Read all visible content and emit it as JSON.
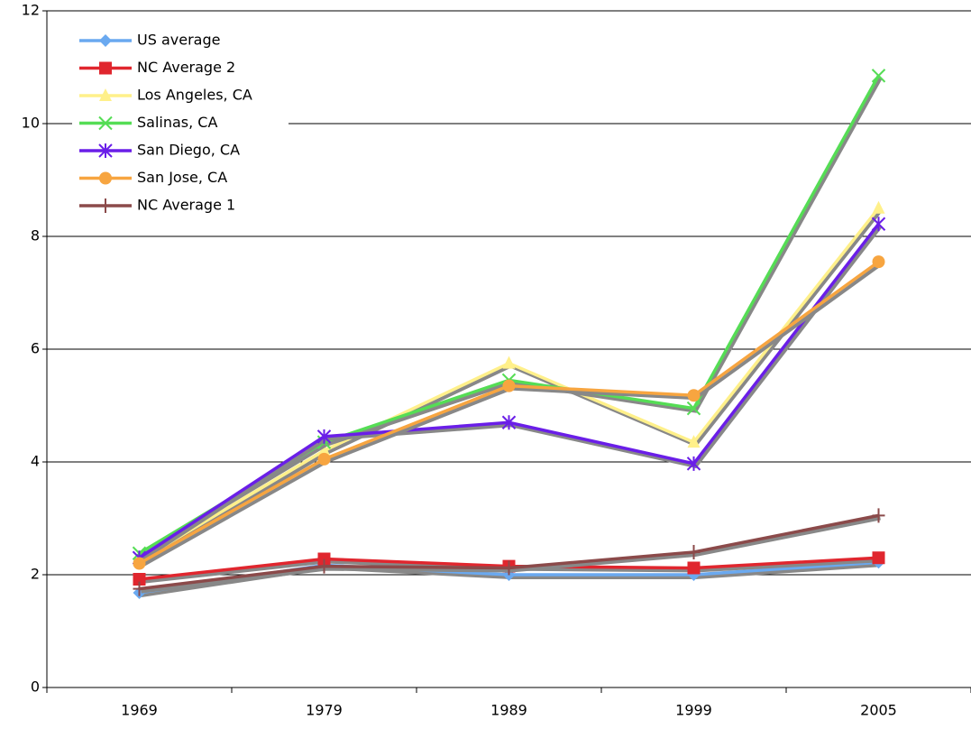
{
  "chart_data": {
    "type": "line",
    "categories": [
      "1969",
      "1979",
      "1989",
      "1999",
      "2005"
    ],
    "ylim": [
      0,
      12
    ],
    "yticks": [
      0,
      2,
      4,
      6,
      8,
      10,
      12
    ],
    "grid": true,
    "legend": "upper-left",
    "series": [
      {
        "name": "US average",
        "color": "#6aa9f0",
        "marker": "diamond",
        "values": [
          1.68,
          2.17,
          2.0,
          2.0,
          2.22
        ]
      },
      {
        "name": "NC Average 2",
        "color": "#e0262e",
        "marker": "square",
        "values": [
          1.92,
          2.28,
          2.15,
          2.12,
          2.3
        ]
      },
      {
        "name": "Los Angeles, CA",
        "color": "#fff08a",
        "marker": "triangle",
        "values": [
          2.25,
          4.2,
          5.75,
          4.35,
          8.5
        ]
      },
      {
        "name": "Salinas, CA",
        "color": "#55dd55",
        "marker": "x",
        "values": [
          2.38,
          4.35,
          5.45,
          4.95,
          10.85
        ]
      },
      {
        "name": "San Diego, CA",
        "color": "#6a1ee8",
        "marker": "asterisk",
        "values": [
          2.3,
          4.45,
          4.7,
          3.97,
          8.22
        ]
      },
      {
        "name": "San Jose, CA",
        "color": "#f7a540",
        "marker": "circle",
        "values": [
          2.2,
          4.05,
          5.35,
          5.18,
          7.55
        ]
      },
      {
        "name": "NC Average 1",
        "color": "#8b4a4a",
        "marker": "plus",
        "values": [
          1.75,
          2.15,
          2.12,
          2.4,
          3.05
        ]
      }
    ]
  }
}
